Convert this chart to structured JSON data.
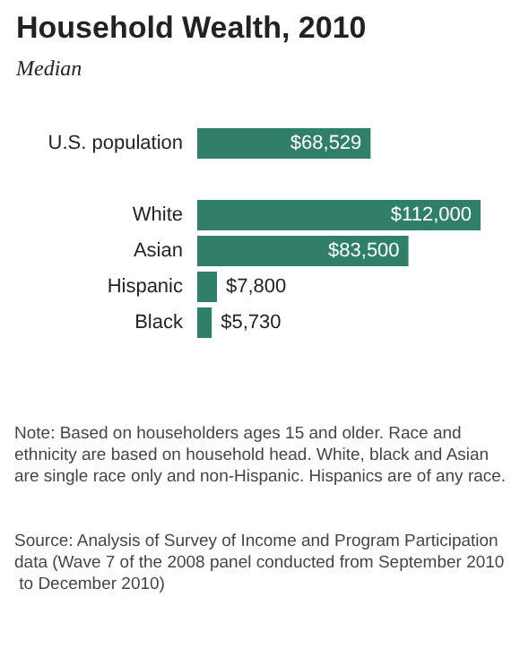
{
  "chart_data": {
    "type": "bar",
    "orientation": "horizontal",
    "title": "Household Wealth, 2010",
    "subtitle": "Median",
    "categories": [
      "U.S. population",
      null,
      "White",
      "Asian",
      "Hispanic",
      "Black"
    ],
    "values": [
      68529,
      null,
      112000,
      83500,
      7800,
      5730
    ],
    "value_labels": [
      "$68,529",
      null,
      "$112,000",
      "$83,500",
      "$7,800",
      "$5,730"
    ],
    "color": "#2f7f6a",
    "annotations": [
      "Note: Based on householders ages 15 and older. Race and ethnicity are based on household head. White, black and Asian are single race only and non-Hispanic. Hispanics are of any race.",
      "Source: Analysis of Survey of Income and Program Participation data (Wave 7 of the 2008 panel conducted from September 2010 to December 2010)"
    ]
  }
}
